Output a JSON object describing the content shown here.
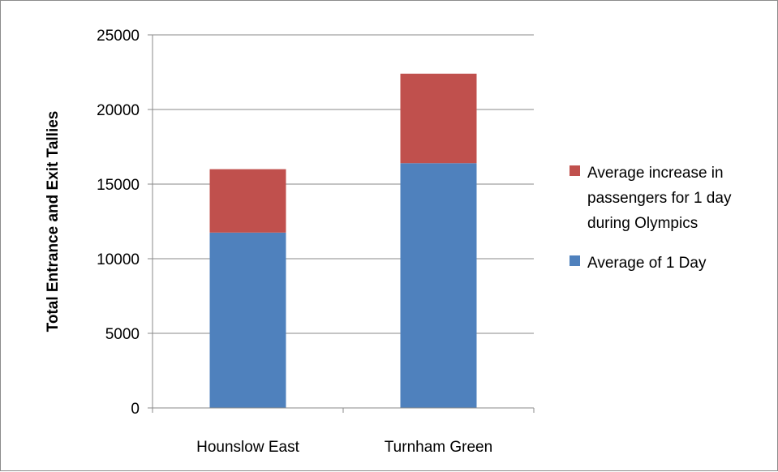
{
  "chart_data": {
    "type": "bar",
    "stacked": true,
    "categories": [
      "Hounslow East",
      "Turnham Green"
    ],
    "series": [
      {
        "name": "Average of 1 Day",
        "values": [
          11750,
          16400
        ],
        "color": "#4F81BD"
      },
      {
        "name": "Average increase in passengers for 1 day during Olympics",
        "legend_lines": [
          "Average increase in",
          "passengers for 1 day",
          "during Olympics"
        ],
        "values": [
          4250,
          6000
        ],
        "color": "#C0504D"
      }
    ],
    "title": "",
    "xlabel": "",
    "ylabel": "Total Entrance and Exit Tallies",
    "ylim": [
      0,
      25000
    ],
    "yticks": [
      0,
      5000,
      10000,
      15000,
      20000,
      25000
    ],
    "grid": true,
    "legend_position": "right"
  }
}
